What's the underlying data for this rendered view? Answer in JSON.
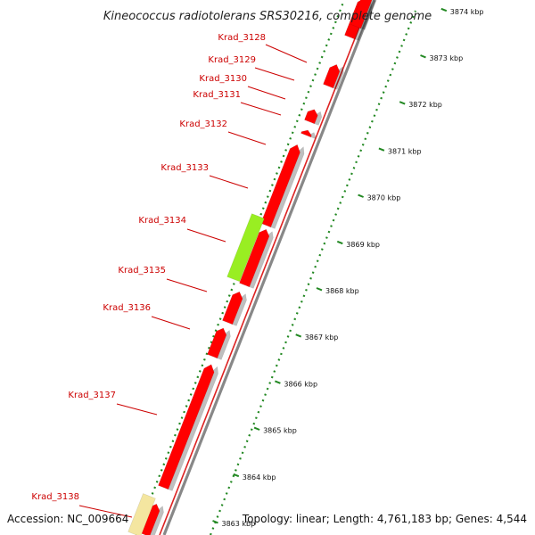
{
  "title": "Kineococcus radiotolerans SRS30216, complete genome",
  "footer": {
    "accession": "Accession: NC_009664",
    "summary": "Topology: linear; Length: 4,761,183 bp; Genes: 4,544"
  },
  "colors": {
    "cds": "#ff0000",
    "cds_highlight": "#99ee22",
    "cds_other": "#f4e6a0",
    "label": "#cc0000",
    "dots": "#228822",
    "backbone": "#888888"
  },
  "scale_ticks": [
    {
      "label": "3863 kbp"
    },
    {
      "label": "3864 kbp"
    },
    {
      "label": "3865 kbp"
    },
    {
      "label": "3866 kbp"
    },
    {
      "label": "3867 kbp"
    },
    {
      "label": "3868 kbp"
    },
    {
      "label": "3869 kbp"
    },
    {
      "label": "3870 kbp"
    },
    {
      "label": "3871 kbp"
    },
    {
      "label": "3872 kbp"
    },
    {
      "label": "3873 kbp"
    },
    {
      "label": "3874 kbp"
    }
  ],
  "genes": [
    {
      "name": "Krad_3128",
      "kind": "cds"
    },
    {
      "name": "Krad_3129",
      "kind": "cds"
    },
    {
      "name": "Krad_3130",
      "kind": "cds"
    },
    {
      "name": "Krad_3131",
      "kind": "cds"
    },
    {
      "name": "Krad_3132",
      "kind": "cds"
    },
    {
      "name": "Krad_3133",
      "kind": "cds"
    },
    {
      "name": "Krad_3134",
      "kind": "highlight"
    },
    {
      "name": "Krad_3135",
      "kind": "cds"
    },
    {
      "name": "Krad_3136",
      "kind": "cds"
    },
    {
      "name": "Krad_3137",
      "kind": "cds"
    },
    {
      "name": "Krad_3138",
      "kind": "other"
    }
  ]
}
